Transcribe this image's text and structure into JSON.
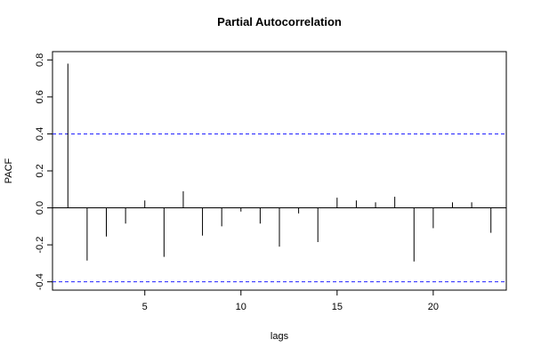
{
  "chart_data": {
    "type": "bar",
    "title": "Partial Autocorrelation",
    "xlabel": "lags",
    "ylabel": "PACF",
    "x": [
      1,
      2,
      3,
      4,
      5,
      6,
      7,
      8,
      9,
      10,
      11,
      12,
      13,
      14,
      15,
      16,
      17,
      18,
      19,
      20,
      21,
      22,
      23
    ],
    "values": [
      0.78,
      -0.285,
      -0.155,
      -0.085,
      0.04,
      -0.265,
      0.09,
      -0.15,
      -0.1,
      -0.02,
      -0.085,
      -0.21,
      -0.03,
      -0.185,
      0.055,
      0.04,
      0.03,
      0.06,
      -0.29,
      -0.11,
      0.03,
      0.03,
      -0.135
    ],
    "xlim": [
      0.2,
      23.8
    ],
    "ylim": [
      -0.445,
      0.845
    ],
    "x_ticks": [
      5,
      10,
      15,
      20
    ],
    "y_ticks": [
      -0.4,
      -0.2,
      0.0,
      0.2,
      0.4,
      0.6,
      0.8
    ],
    "y_tick_labels": [
      "-0.4",
      "-0.2",
      "0.0",
      "0.2",
      "0.4",
      "0.6",
      "0.8"
    ],
    "confidence_bounds": [
      0.4,
      -0.4
    ],
    "colors": {
      "bars": "#000000",
      "bounds": "#2222ff",
      "zero_line": "#000000"
    },
    "grid": false,
    "legend": "none"
  }
}
